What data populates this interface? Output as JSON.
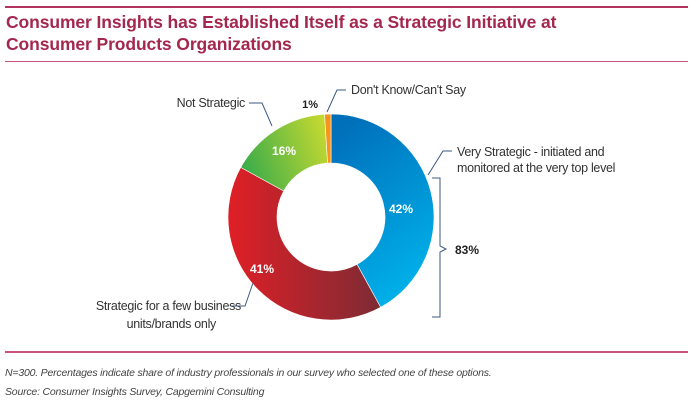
{
  "header": {
    "title_line1": "Consumer Insights has Established Itself as a Strategic Initiative at",
    "title_line2": "Consumer Products Organizations"
  },
  "chart_data": {
    "type": "pie",
    "subtype": "donut",
    "title": "Consumer Insights has Established Itself as a Strategic Initiative at Consumer Products Organizations",
    "slices": [
      {
        "label": "Very Strategic - initiated and monitored at the very top level",
        "label_lines": [
          "Very Strategic - initiated and",
          "monitored at the very top level"
        ],
        "value": 42,
        "value_label": "42%",
        "color_start": "#0070bb",
        "color_end": "#00b4ec"
      },
      {
        "label": "Strategic for a few business units/brands only",
        "label_lines": [
          "Strategic for a few business",
          "units/brands  only"
        ],
        "value": 41,
        "value_label": "41%",
        "color_start": "#e01f26",
        "color_end": "#7d2b34"
      },
      {
        "label": "Not Strategic",
        "label_lines": [
          "Not Strategic"
        ],
        "value": 16,
        "value_label": "16%",
        "color_start": "#3aac4a",
        "color_end": "#c3d831"
      },
      {
        "label": "Don't Know/Can't Say",
        "label_lines": [
          "Don't Know/Can't Say"
        ],
        "value": 1,
        "value_label": "1%",
        "color_start": "#f7941d",
        "color_end": "#f7941d"
      }
    ],
    "bracket": {
      "label": "83%",
      "covers": [
        "Very Strategic - initiated and monitored at the very top level",
        "Strategic for a few business units/brands only"
      ]
    },
    "start_angle_deg": 0,
    "direction": "clockwise"
  },
  "footer": {
    "note": "N=300. Percentages indicate share of industry professionals in our survey who selected one of these options.",
    "source": "Source: Consumer Insights Survey, Capgemini Consulting"
  }
}
